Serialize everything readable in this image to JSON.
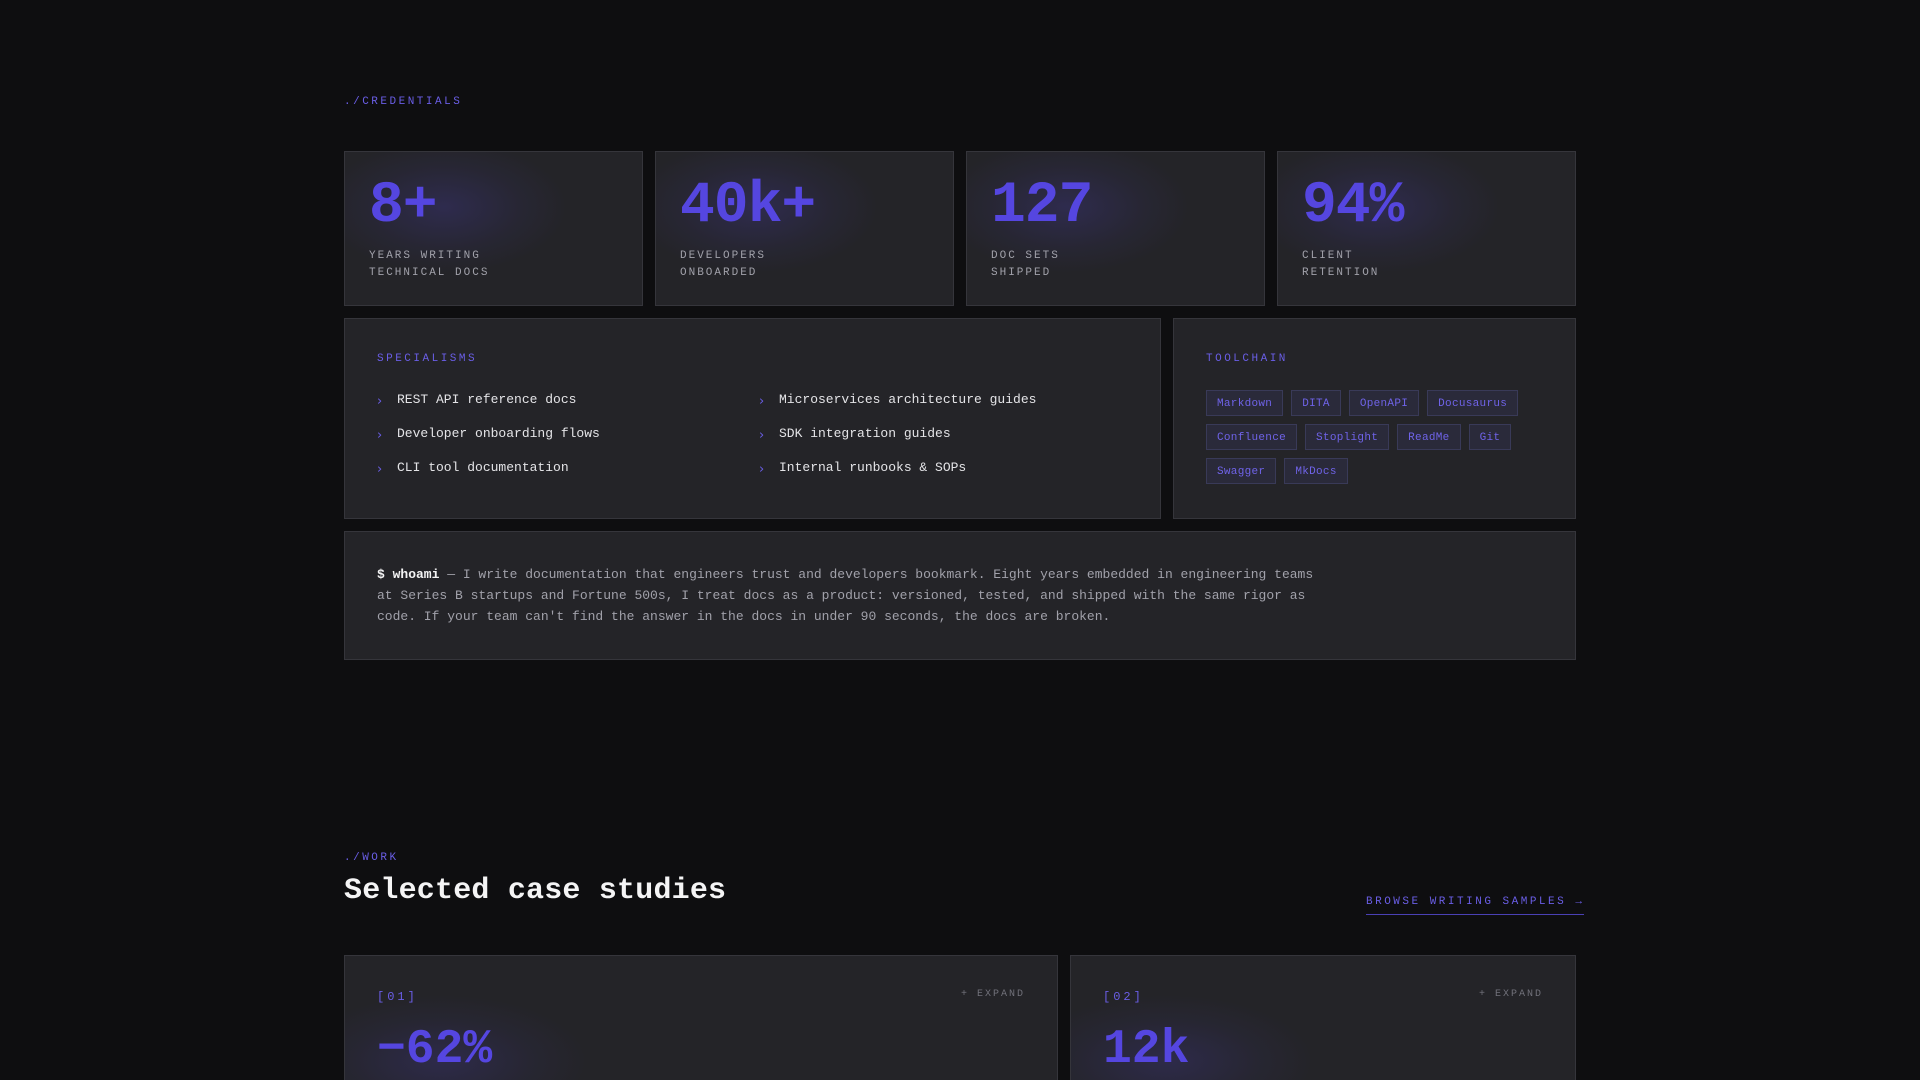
{
  "credentials": {
    "tag": "./CREDENTIALS",
    "stats": [
      {
        "value": "8+",
        "label_line1": "YEARS WRITING",
        "label_line2": "TECHNICAL DOCS"
      },
      {
        "value": "40k+",
        "label_line1": "DEVELOPERS",
        "label_line2": "ONBOARDED"
      },
      {
        "value": "127",
        "label_line1": "DOC SETS",
        "label_line2": "SHIPPED"
      },
      {
        "value": "94%",
        "label_line1": "CLIENT",
        "label_line2": "RETENTION"
      }
    ],
    "specialisms": {
      "title": "SPECIALISMS",
      "bullet_icon": "chevron-right-icon",
      "items": [
        "REST API reference docs",
        "Microservices architecture guides",
        "Developer onboarding flows",
        "SDK integration guides",
        "CLI tool documentation",
        "Internal runbooks & SOPs"
      ]
    },
    "toolchain": {
      "title": "TOOLCHAIN",
      "tools": [
        "Markdown",
        "DITA",
        "OpenAPI",
        "Docusaurus",
        "Confluence",
        "Stoplight",
        "ReadMe",
        "Git",
        "Swagger",
        "MkDocs"
      ]
    },
    "bio": {
      "command": "$ whoami",
      "text": " — I write documentation that engineers trust and developers bookmark. Eight years embedded in engineering teams at Series B startups and Fortune 500s, I treat docs as a product: versioned, tested, and shipped with the same rigor as code. If your team can't find the answer in the docs in under 90 seconds, the docs are broken."
    }
  },
  "work": {
    "tag": "./WORK",
    "title": "Selected case studies",
    "browse_link": "BROWSE WRITING SAMPLES →",
    "cases": [
      {
        "index": "[01]",
        "expand": "+ EXPAND",
        "value": "−62%"
      },
      {
        "index": "[02]",
        "expand": "+ EXPAND",
        "value": "12k"
      }
    ]
  },
  "colors": {
    "background": "#0e0e10",
    "panel": "#242428",
    "accent": "#5546e0",
    "accent_text": "#6a5ee6"
  }
}
